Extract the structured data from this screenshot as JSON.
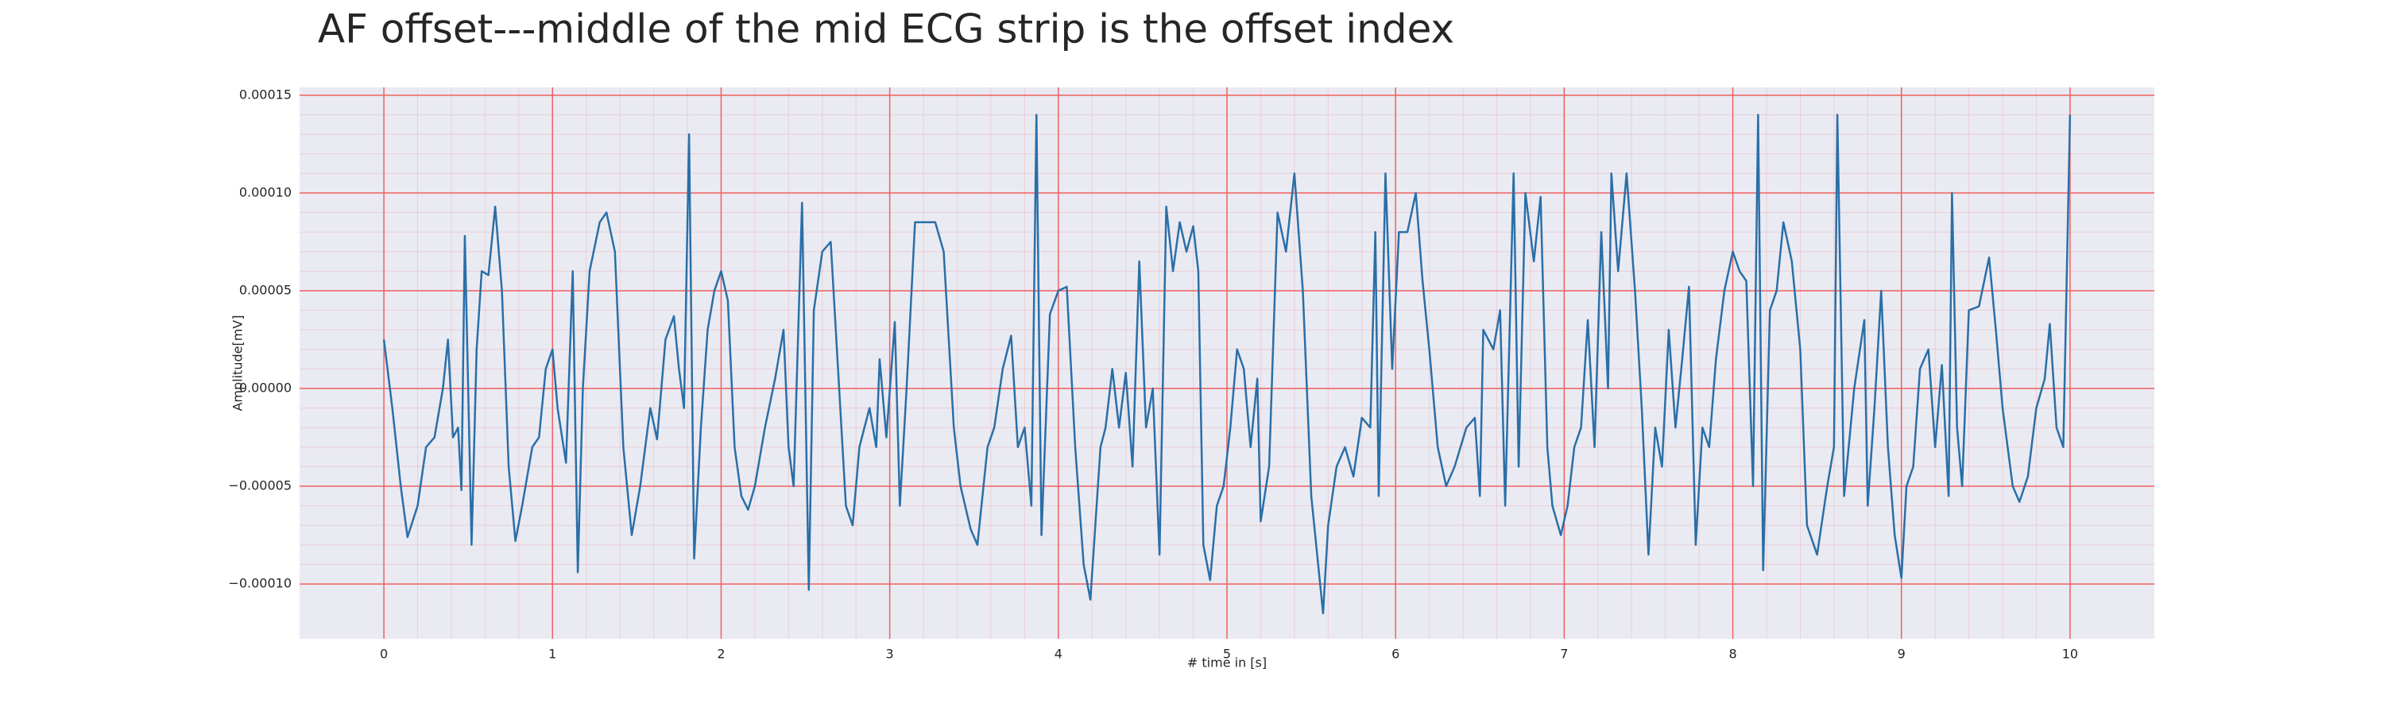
{
  "chart_data": {
    "type": "line",
    "title": "AF offset---middle of the mid ECG strip is the offset index",
    "xlabel": "# time in [s]",
    "ylabel": "Amplitude[mV]",
    "xlim": [
      -0.5,
      10.5
    ],
    "ylim": [
      -0.000128,
      0.000154
    ],
    "xticks": [
      0,
      1,
      2,
      3,
      4,
      5,
      6,
      7,
      8,
      9,
      10
    ],
    "yticks": [
      {
        "value": -0.0001,
        "label": "−0.00010"
      },
      {
        "value": -5e-05,
        "label": "−0.00005"
      },
      {
        "value": 0,
        "label": "0.00000"
      },
      {
        "value": 5e-05,
        "label": "0.00005"
      },
      {
        "value": 0.0001,
        "label": "0.00010"
      },
      {
        "value": 0.00015,
        "label": "0.00015"
      }
    ],
    "grid": true,
    "grid_color": "#f06060",
    "minor_grid": true,
    "background": "#eaeaf2",
    "series": [
      {
        "color": "#2a6fa8",
        "x": [
          0.0,
          0.05,
          0.1,
          0.14,
          0.2,
          0.25,
          0.3,
          0.35,
          0.38,
          0.41,
          0.44,
          0.46,
          0.48,
          0.52,
          0.55,
          0.58,
          0.62,
          0.66,
          0.7,
          0.74,
          0.78,
          0.82,
          0.88,
          0.92,
          0.96,
          1.0,
          1.03,
          1.08,
          1.12,
          1.15,
          1.18,
          1.22,
          1.28,
          1.32,
          1.37,
          1.42,
          1.47,
          1.52,
          1.58,
          1.62,
          1.67,
          1.72,
          1.75,
          1.78,
          1.81,
          1.84,
          1.88,
          1.92,
          1.96,
          2.0,
          2.04,
          2.08,
          2.12,
          2.16,
          2.2,
          2.26,
          2.32,
          2.37,
          2.4,
          2.43,
          2.48,
          2.52,
          2.55,
          2.6,
          2.65,
          2.7,
          2.74,
          2.78,
          2.82,
          2.88,
          2.92,
          2.94,
          2.98,
          3.03,
          3.06,
          3.1,
          3.15,
          3.22,
          3.27,
          3.32,
          3.38,
          3.42,
          3.48,
          3.52,
          3.58,
          3.62,
          3.67,
          3.72,
          3.76,
          3.8,
          3.84,
          3.87,
          3.9,
          3.95,
          4.0,
          4.05,
          4.1,
          4.15,
          4.19,
          4.25,
          4.28,
          4.32,
          4.36,
          4.4,
          4.44,
          4.48,
          4.52,
          4.56,
          4.6,
          4.64,
          4.68,
          4.72,
          4.76,
          4.8,
          4.83,
          4.86,
          4.9,
          4.94,
          4.98,
          5.02,
          5.06,
          5.1,
          5.14,
          5.18,
          5.2,
          5.25,
          5.3,
          5.35,
          5.4,
          5.45,
          5.5,
          5.57,
          5.6,
          5.65,
          5.7,
          5.75,
          5.8,
          5.85,
          5.88,
          5.9,
          5.94,
          5.98,
          6.02,
          6.07,
          6.12,
          6.16,
          6.2,
          6.25,
          6.3,
          6.35,
          6.42,
          6.47,
          6.5,
          6.52,
          6.58,
          6.62,
          6.65,
          6.7,
          6.73,
          6.77,
          6.82,
          6.86,
          6.9,
          6.93,
          6.98,
          7.02,
          7.06,
          7.1,
          7.14,
          7.18,
          7.22,
          7.26,
          7.28,
          7.32,
          7.37,
          7.42,
          7.46,
          7.5,
          7.54,
          7.58,
          7.62,
          7.66,
          7.7,
          7.74,
          7.78,
          7.82,
          7.86,
          7.9,
          7.95,
          8.0,
          8.04,
          8.08,
          8.12,
          8.15,
          8.18,
          8.22,
          8.26,
          8.3,
          8.35,
          8.4,
          8.44,
          8.5,
          8.56,
          8.6,
          8.62,
          8.66,
          8.72,
          8.78,
          8.8,
          8.84,
          8.88,
          8.92,
          8.96,
          9.0,
          9.03,
          9.07,
          9.11,
          9.16,
          9.2,
          9.24,
          9.28,
          9.3,
          9.33,
          9.36,
          9.4,
          9.46,
          9.52,
          9.56,
          9.6,
          9.66,
          9.7,
          9.75,
          9.8,
          9.85,
          9.88,
          9.92,
          9.96,
          10.0
        ],
        "values": [
          2.5e-05,
          -1e-05,
          -5e-05,
          -7.6e-05,
          -6e-05,
          -3e-05,
          -2.5e-05,
          0,
          2.5e-05,
          -2.5e-05,
          -2e-05,
          -5.2e-05,
          7.8e-05,
          -8e-05,
          2e-05,
          6e-05,
          5.8e-05,
          9.3e-05,
          5e-05,
          -4e-05,
          -7.8e-05,
          -6e-05,
          -3e-05,
          -2.5e-05,
          1e-05,
          2e-05,
          -1e-05,
          -3.8e-05,
          6e-05,
          -9.4e-05,
          0,
          6e-05,
          8.5e-05,
          9e-05,
          7e-05,
          -3e-05,
          -7.5e-05,
          -5e-05,
          -1e-05,
          -2.6e-05,
          2.5e-05,
          3.7e-05,
          1e-05,
          -1e-05,
          0.00013,
          -8.7e-05,
          -2e-05,
          3e-05,
          5e-05,
          6e-05,
          4.5e-05,
          -3e-05,
          -5.5e-05,
          -6.2e-05,
          -5e-05,
          -2e-05,
          5e-06,
          3e-05,
          -3e-05,
          -5e-05,
          9.5e-05,
          -0.000103,
          4e-05,
          7e-05,
          7.5e-05,
          0,
          -6e-05,
          -7e-05,
          -3e-05,
          -1e-05,
          -3e-05,
          1.5e-05,
          -2.5e-05,
          3.4e-05,
          -6e-05,
          0,
          8.5e-05,
          8.5e-05,
          8.5e-05,
          7e-05,
          -2e-05,
          -5e-05,
          -7.2e-05,
          -8e-05,
          -3e-05,
          -2e-05,
          1e-05,
          2.7e-05,
          -3e-05,
          -2e-05,
          -6e-05,
          0.00014,
          -7.5e-05,
          3.8e-05,
          5e-05,
          5.2e-05,
          -3e-05,
          -9e-05,
          -0.000108,
          -3e-05,
          -2e-05,
          1e-05,
          -2e-05,
          8e-06,
          -4e-05,
          6.5e-05,
          -2e-05,
          0,
          -8.5e-05,
          9.3e-05,
          6e-05,
          8.5e-05,
          7e-05,
          8.3e-05,
          6e-05,
          -8e-05,
          -9.8e-05,
          -6e-05,
          -5e-05,
          -2e-05,
          2e-05,
          1e-05,
          -3e-05,
          5e-06,
          -6.8e-05,
          -4e-05,
          9e-05,
          7e-05,
          0.00011,
          5e-05,
          -5.5e-05,
          -0.000115,
          -7e-05,
          -4e-05,
          -3e-05,
          -4.5e-05,
          -1.5e-05,
          -2e-05,
          8e-05,
          -5.5e-05,
          0.00011,
          1e-05,
          8e-05,
          8e-05,
          0.0001,
          5.5e-05,
          2e-05,
          -3e-05,
          -5e-05,
          -4e-05,
          -2e-05,
          -1.5e-05,
          -5.5e-05,
          3e-05,
          2e-05,
          4e-05,
          -6e-05,
          0.00011,
          -4e-05,
          0.0001,
          6.5e-05,
          9.8e-05,
          -3e-05,
          -6e-05,
          -7.5e-05,
          -6e-05,
          -3e-05,
          -2e-05,
          3.5e-05,
          -3e-05,
          8e-05,
          0,
          0.00011,
          6e-05,
          0.00011,
          5e-05,
          -1e-05,
          -8.5e-05,
          -2e-05,
          -4e-05,
          3e-05,
          -2e-05,
          1.5e-05,
          5.2e-05,
          -8e-05,
          -2e-05,
          -3e-05,
          1.5e-05,
          5e-05,
          7e-05,
          6e-05,
          5.5e-05,
          -5e-05,
          0.00014,
          -9.3e-05,
          4e-05,
          5e-05,
          8.5e-05,
          6.5e-05,
          2e-05,
          -7e-05,
          -8.5e-05,
          -5e-05,
          -3e-05,
          0.00014,
          -5.5e-05,
          0,
          3.5e-05,
          -6e-05,
          -1e-05,
          5e-05,
          -3e-05,
          -7.5e-05,
          -9.7e-05,
          -5e-05,
          -4e-05,
          1e-05,
          2e-05,
          -3e-05,
          1.2e-05,
          -5.5e-05,
          0.0001,
          -2e-05,
          -5e-05,
          4e-05,
          4.2e-05,
          6.7e-05,
          3e-05,
          -1e-05,
          -5e-05,
          -5.8e-05,
          -4.5e-05,
          -1e-05,
          5e-06,
          3.3e-05,
          -2e-05,
          -3e-05,
          0.00014
        ]
      }
    ]
  }
}
